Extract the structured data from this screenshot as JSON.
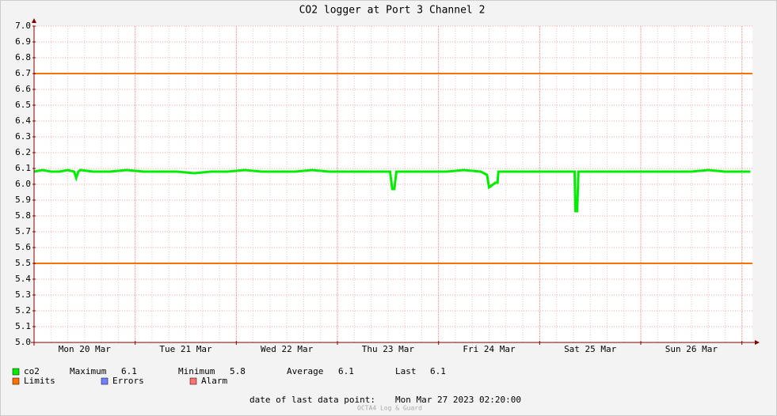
{
  "chart_data": {
    "type": "line",
    "title": "CO2 logger at Port 3 Channel 2",
    "xlim": [
      0,
      170.5
    ],
    "ylim": [
      5.0,
      7.0
    ],
    "xticks": [
      {
        "value": 12,
        "label": "Mon 20 Mar"
      },
      {
        "value": 36,
        "label": "Tue 21 Mar"
      },
      {
        "value": 60,
        "label": "Wed 22 Mar"
      },
      {
        "value": 84,
        "label": "Thu 23 Mar"
      },
      {
        "value": 108,
        "label": "Fri 24 Mar"
      },
      {
        "value": 132,
        "label": "Sat 25 Mar"
      },
      {
        "value": 156,
        "label": "Sun 26 Mar"
      }
    ],
    "xgrid": [
      4,
      8,
      12,
      16,
      20,
      24,
      28,
      32,
      36,
      40,
      44,
      48,
      52,
      56,
      60,
      64,
      68,
      72,
      76,
      80,
      84,
      88,
      92,
      96,
      100,
      104,
      108,
      112,
      116,
      120,
      124,
      128,
      132,
      136,
      140,
      144,
      148,
      152,
      156,
      160,
      164,
      168
    ],
    "yticks": [
      {
        "value": 5.0,
        "label": "5.0"
      },
      {
        "value": 5.1,
        "label": "5.1"
      },
      {
        "value": 5.2,
        "label": "5.2"
      },
      {
        "value": 5.3,
        "label": "5.3"
      },
      {
        "value": 5.4,
        "label": "5.4"
      },
      {
        "value": 5.5,
        "label": "5.5"
      },
      {
        "value": 5.6,
        "label": "5.6"
      },
      {
        "value": 5.7,
        "label": "5.7"
      },
      {
        "value": 5.8,
        "label": "5.8"
      },
      {
        "value": 5.9,
        "label": "5.9"
      },
      {
        "value": 6.0,
        "label": "6.0"
      },
      {
        "value": 6.1,
        "label": "6.1"
      },
      {
        "value": 6.2,
        "label": "6.2"
      },
      {
        "value": 6.3,
        "label": "6.3"
      },
      {
        "value": 6.4,
        "label": "6.4"
      },
      {
        "value": 6.5,
        "label": "6.5"
      },
      {
        "value": 6.6,
        "label": "6.6"
      },
      {
        "value": 6.7,
        "label": "6.7"
      },
      {
        "value": 6.8,
        "label": "6.8"
      },
      {
        "value": 6.9,
        "label": "6.9"
      },
      {
        "value": 7.0,
        "label": "7.0"
      }
    ],
    "grid": true,
    "series": [
      {
        "name": "co2",
        "color": "#00ee00",
        "x": [
          0,
          2,
          4,
          6,
          8,
          9.5,
          10,
          10.5,
          11,
          14,
          18,
          22,
          26,
          30,
          34,
          38,
          42,
          46,
          50,
          54,
          58,
          62,
          66,
          70,
          74,
          78,
          82,
          84.5,
          85,
          85.5,
          86,
          90,
          94,
          98,
          102,
          106,
          107.5,
          108,
          108.5,
          109,
          109.5,
          110,
          110.2,
          114,
          118,
          122,
          126,
          128.3,
          128.5,
          128.9,
          129.2,
          132,
          136,
          140,
          144,
          148,
          152,
          156,
          160,
          164,
          168,
          170
        ],
        "values": [
          6.08,
          6.09,
          6.08,
          6.08,
          6.09,
          6.08,
          6.04,
          6.08,
          6.09,
          6.08,
          6.08,
          6.09,
          6.08,
          6.08,
          6.08,
          6.07,
          6.08,
          6.08,
          6.09,
          6.08,
          6.08,
          6.08,
          6.09,
          6.08,
          6.08,
          6.08,
          6.08,
          6.08,
          5.97,
          5.97,
          6.08,
          6.08,
          6.08,
          6.08,
          6.09,
          6.08,
          6.06,
          5.98,
          5.99,
          6.0,
          6.01,
          6.01,
          6.08,
          6.08,
          6.08,
          6.08,
          6.08,
          6.08,
          5.83,
          5.83,
          6.08,
          6.08,
          6.08,
          6.08,
          6.08,
          6.08,
          6.08,
          6.08,
          6.09,
          6.08,
          6.08,
          6.08
        ]
      }
    ],
    "limits": {
      "name": "Limits",
      "color": "#ff7000",
      "values": [
        6.7,
        5.5
      ]
    },
    "extra_legend": [
      {
        "name": "Errors",
        "color": "#7080ff"
      },
      {
        "name": "Alarm",
        "color": "#ff7070"
      }
    ],
    "stats": [
      {
        "label": "Maximum",
        "value": 6.1
      },
      {
        "label": "Minimum",
        "value": 5.8
      },
      {
        "label": "Average",
        "value": 6.1
      },
      {
        "label": "Last",
        "value": 6.1
      }
    ],
    "footer": {
      "label": "date of last data point:",
      "date": "Mon Mar 27 2023 02:20:00"
    },
    "watermark": "OCTA4 Log & Guard"
  }
}
